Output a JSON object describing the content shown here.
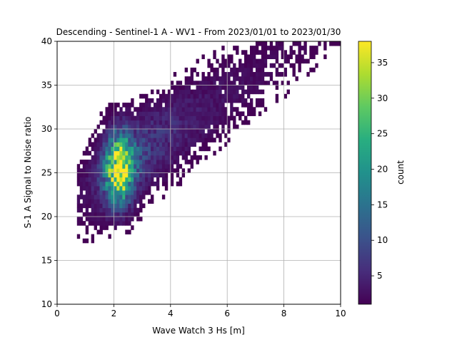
{
  "chart_data": {
    "type": "heatmap",
    "title": "Descending - Sentinel-1 A - WV1 - From 2023/01/01 to 2023/01/30",
    "xlabel": "Wave Watch 3 Hs [m]",
    "ylabel": "S-1 A Signal to Noise ratio",
    "xlim": [
      0,
      10
    ],
    "ylim": [
      10,
      40
    ],
    "x_ticks": [
      "0",
      "2",
      "4",
      "6",
      "8",
      "10"
    ],
    "y_ticks": [
      "10",
      "15",
      "20",
      "25",
      "30",
      "35",
      "40"
    ],
    "grid": true,
    "colormap": "viridis",
    "colorbar": {
      "label": "count",
      "range": [
        1,
        38
      ],
      "ticks": [
        "5",
        "10",
        "15",
        "20",
        "25",
        "30",
        "35"
      ]
    },
    "bin_size": {
      "x": 0.1,
      "y": 0.5
    },
    "density_model": {
      "description_of_visible_pattern": "counts peak (~38) near Hs 2.2 m, SNR 26; broad tail extends to Hs 10 m, SNR 32-40",
      "core": {
        "x": 2.2,
        "y": 25.5,
        "sx": 0.33,
        "sy": 2.6,
        "amp": 34
      },
      "ridge": {
        "x0": 2.6,
        "y0": 26.5,
        "slope": 2.2,
        "sx": 1.1,
        "sy": 3.0,
        "amp": 8
      }
    }
  }
}
